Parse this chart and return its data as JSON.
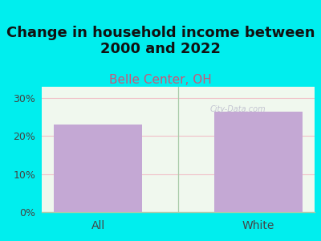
{
  "title": "Change in household income between\n2000 and 2022",
  "subtitle": "Belle Center, OH",
  "categories": [
    "All",
    "White"
  ],
  "values": [
    23.0,
    26.5
  ],
  "bar_color": "#C4A8D4",
  "background_color": "#00EEEE",
  "plot_bg_color": "#F0F8EE",
  "title_fontsize": 13,
  "subtitle_fontsize": 11,
  "subtitle_color": "#CC5577",
  "title_color": "#111111",
  "tick_label_color": "#444444",
  "ylim": [
    0,
    33
  ],
  "yticks": [
    0,
    10,
    20,
    30
  ],
  "grid_color": "#F0C0C8",
  "watermark": "City-Data.com",
  "watermark_color": "#BBBBCC",
  "divider_color": "#AACCAA",
  "bottom_line_color": "#AACCAA"
}
